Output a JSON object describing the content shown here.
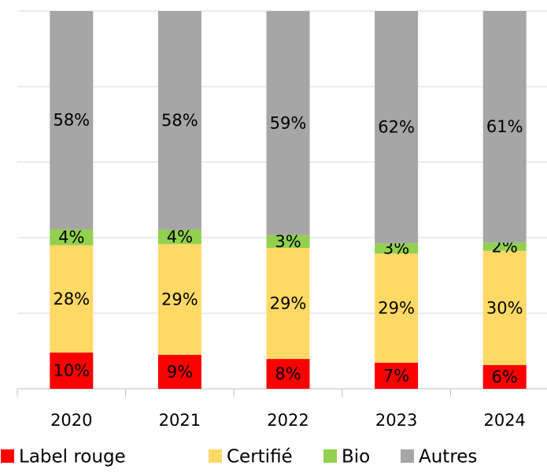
{
  "chart_data": {
    "type": "stacked_bar",
    "categories": [
      "2020",
      "2021",
      "2022",
      "2023",
      "2024"
    ],
    "series": [
      {
        "name": "Label rouge",
        "color": "#ff0000",
        "values": [
          9.6,
          9.0,
          7.9,
          6.9,
          6.3
        ],
        "value_labels": [
          "10%",
          "9%",
          "8%",
          "7%",
          "6%"
        ]
      },
      {
        "name": "Certifié",
        "color": "#ffd966",
        "values": [
          28.4,
          29.3,
          29.4,
          28.9,
          30.2
        ],
        "value_labels": [
          "28%",
          "29%",
          "29%",
          "29%",
          "30%"
        ]
      },
      {
        "name": "Bio",
        "color": "#92d050",
        "values": [
          4.2,
          3.8,
          3.4,
          2.7,
          2.2
        ],
        "value_labels": [
          "4%",
          "4%",
          "3%",
          "3%",
          "2%"
        ]
      },
      {
        "name": "Autres",
        "color": "#a6a6a6",
        "values": [
          57.8,
          57.9,
          59.3,
          61.5,
          61.3
        ],
        "value_labels": [
          "58%",
          "58%",
          "59%",
          "62%",
          "61%"
        ]
      }
    ],
    "ylim": [
      0,
      100
    ],
    "yticks": [
      0,
      20,
      40,
      60,
      80,
      100
    ],
    "grid": true
  }
}
